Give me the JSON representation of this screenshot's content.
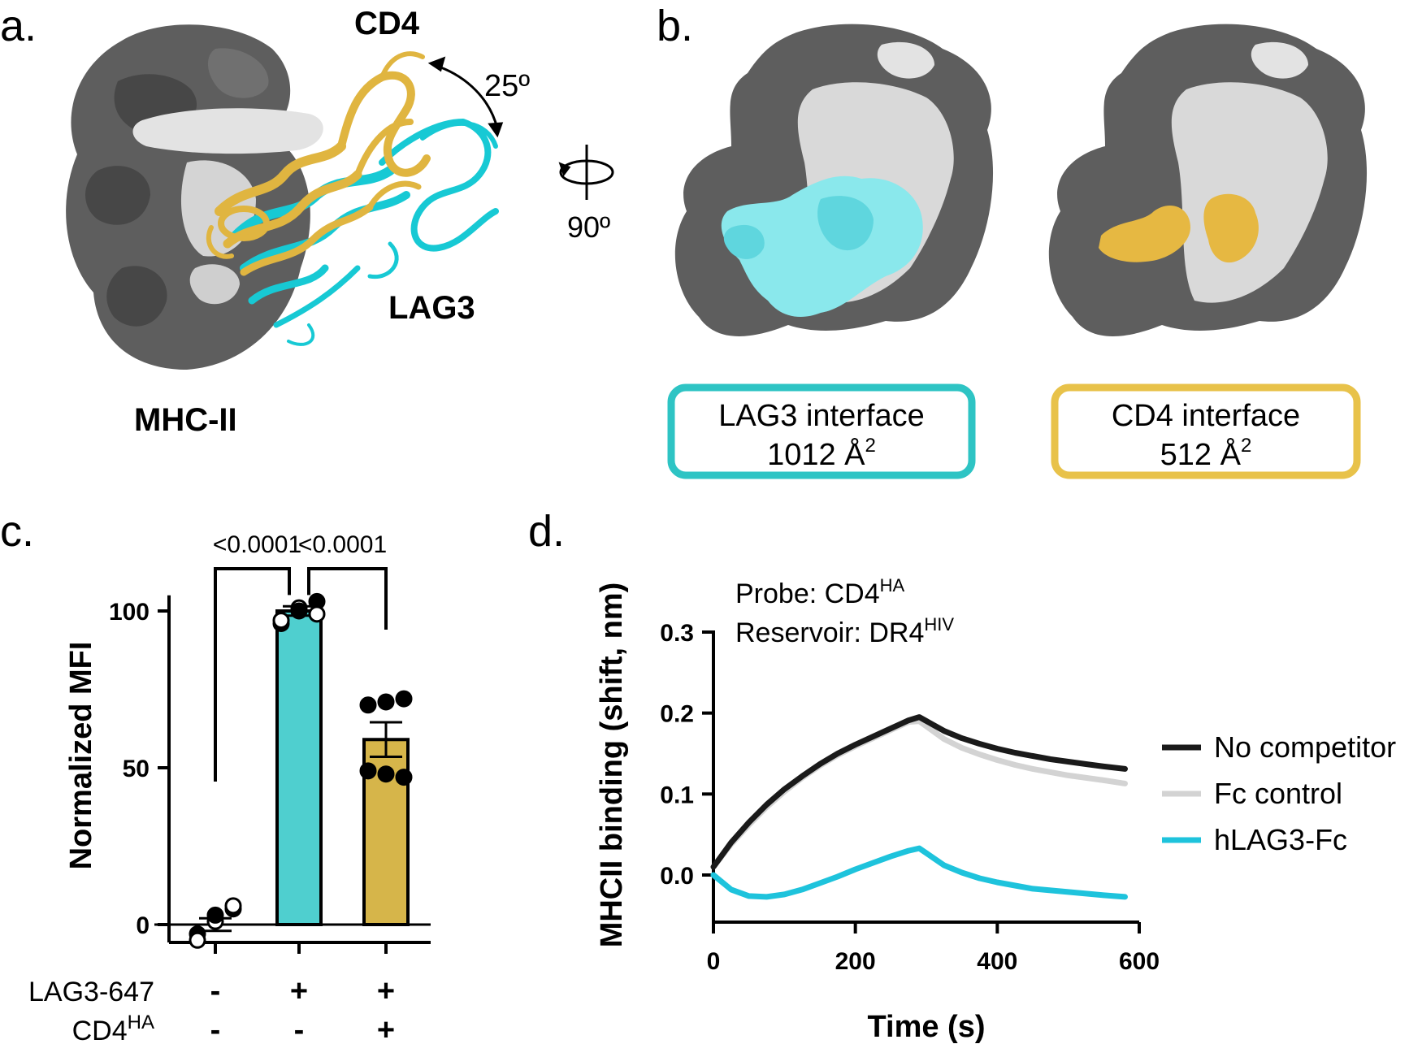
{
  "panels": {
    "a": {
      "label": "a.",
      "angle_label": "25º",
      "labels": {
        "mhc": "MHC-II",
        "cd4": "CD4",
        "lag3": "LAG3"
      }
    },
    "rotation": {
      "label": "90º"
    },
    "b": {
      "label": "b.",
      "boxes": [
        {
          "line1": "LAG3 interface",
          "value": "1012 Å",
          "sup": "2",
          "color": "#2ec4c4"
        },
        {
          "line1": "CD4 interface",
          "value": "512 Å",
          "sup": "2",
          "color": "#e8c24a"
        }
      ]
    },
    "c": {
      "label": "c."
    },
    "d": {
      "label": "d."
    }
  },
  "colors": {
    "mhc_dark": "#5e5e5e",
    "mhc_light": "#d9d9d9",
    "cd4": "#e0b540",
    "lag3": "#17c9d4",
    "bar_lag3": "#4fcfcf",
    "bar_cd4": "#d6b54a"
  },
  "chart_data": [
    {
      "type": "bar",
      "ylabel": "Normalized MFI",
      "ylim": [
        -5,
        105
      ],
      "yticks": [
        "0",
        "50",
        "100"
      ],
      "categories": [
        "1",
        "2",
        "3"
      ],
      "values": [
        0,
        100,
        59
      ],
      "sem": [
        2,
        1.5,
        5.5
      ],
      "points": [
        [
          -3,
          1,
          5,
          -5,
          3,
          6
        ],
        [
          96,
          101,
          103,
          97,
          100,
          99
        ],
        [
          70,
          71,
          72,
          49,
          48,
          47
        ]
      ],
      "bar_colors": [
        "#ffffff",
        "#4fcfcf",
        "#d6b54a"
      ],
      "condition_rows": [
        {
          "label": "LAG3-647",
          "signs": [
            "-",
            "+",
            "+"
          ]
        },
        {
          "label": "CD4",
          "sup": "HA",
          "signs": [
            "-",
            "-",
            "+"
          ]
        }
      ],
      "comparisons": [
        {
          "from": 0,
          "to": 1,
          "p": "<0.0001"
        },
        {
          "from": 1,
          "to": 2,
          "p": "<0.0001"
        }
      ]
    },
    {
      "type": "line",
      "xlabel": "Time (s)",
      "ylabel": "MHCII binding (shift, nm)",
      "xlim": [
        0,
        600
      ],
      "ylim": [
        -0.05,
        0.3
      ],
      "xticks": [
        "0",
        "200",
        "400",
        "600"
      ],
      "yticks": [
        "0.0",
        "0.1",
        "0.2",
        "0.3"
      ],
      "annotations": [
        {
          "text": "Probe: CD4",
          "sup": "HA"
        },
        {
          "text": "Reservoir: DR4",
          "sup": "HIV"
        }
      ],
      "series": [
        {
          "name": "No competitor",
          "color": "#1a1a1a",
          "x": [
            0,
            25,
            50,
            75,
            100,
            125,
            150,
            175,
            200,
            225,
            250,
            275,
            290,
            325,
            350,
            375,
            400,
            425,
            450,
            475,
            500,
            525,
            550,
            580
          ],
          "y": [
            0.01,
            0.04,
            0.065,
            0.087,
            0.106,
            0.122,
            0.137,
            0.15,
            0.161,
            0.171,
            0.181,
            0.191,
            0.195,
            0.178,
            0.169,
            0.162,
            0.156,
            0.151,
            0.147,
            0.143,
            0.14,
            0.137,
            0.134,
            0.131
          ]
        },
        {
          "name": "Fc control",
          "color": "#d3d3d3",
          "x": [
            0,
            25,
            50,
            75,
            100,
            125,
            150,
            175,
            200,
            225,
            250,
            275,
            290,
            325,
            350,
            375,
            400,
            425,
            450,
            475,
            500,
            525,
            550,
            580
          ],
          "y": [
            0.01,
            0.038,
            0.062,
            0.084,
            0.103,
            0.12,
            0.135,
            0.148,
            0.159,
            0.169,
            0.179,
            0.189,
            0.19,
            0.168,
            0.157,
            0.149,
            0.142,
            0.136,
            0.131,
            0.127,
            0.123,
            0.12,
            0.117,
            0.113
          ]
        },
        {
          "name": "hLAG3-Fc",
          "color": "#1ec3dc",
          "x": [
            0,
            25,
            50,
            75,
            100,
            125,
            150,
            175,
            200,
            225,
            250,
            275,
            290,
            325,
            350,
            375,
            400,
            425,
            450,
            475,
            500,
            525,
            550,
            580
          ],
          "y": [
            0.0,
            -0.018,
            -0.026,
            -0.027,
            -0.024,
            -0.018,
            -0.01,
            -0.002,
            0.007,
            0.015,
            0.023,
            0.03,
            0.033,
            0.012,
            0.003,
            -0.004,
            -0.009,
            -0.013,
            -0.017,
            -0.019,
            -0.021,
            -0.023,
            -0.025,
            -0.027
          ]
        }
      ]
    }
  ]
}
